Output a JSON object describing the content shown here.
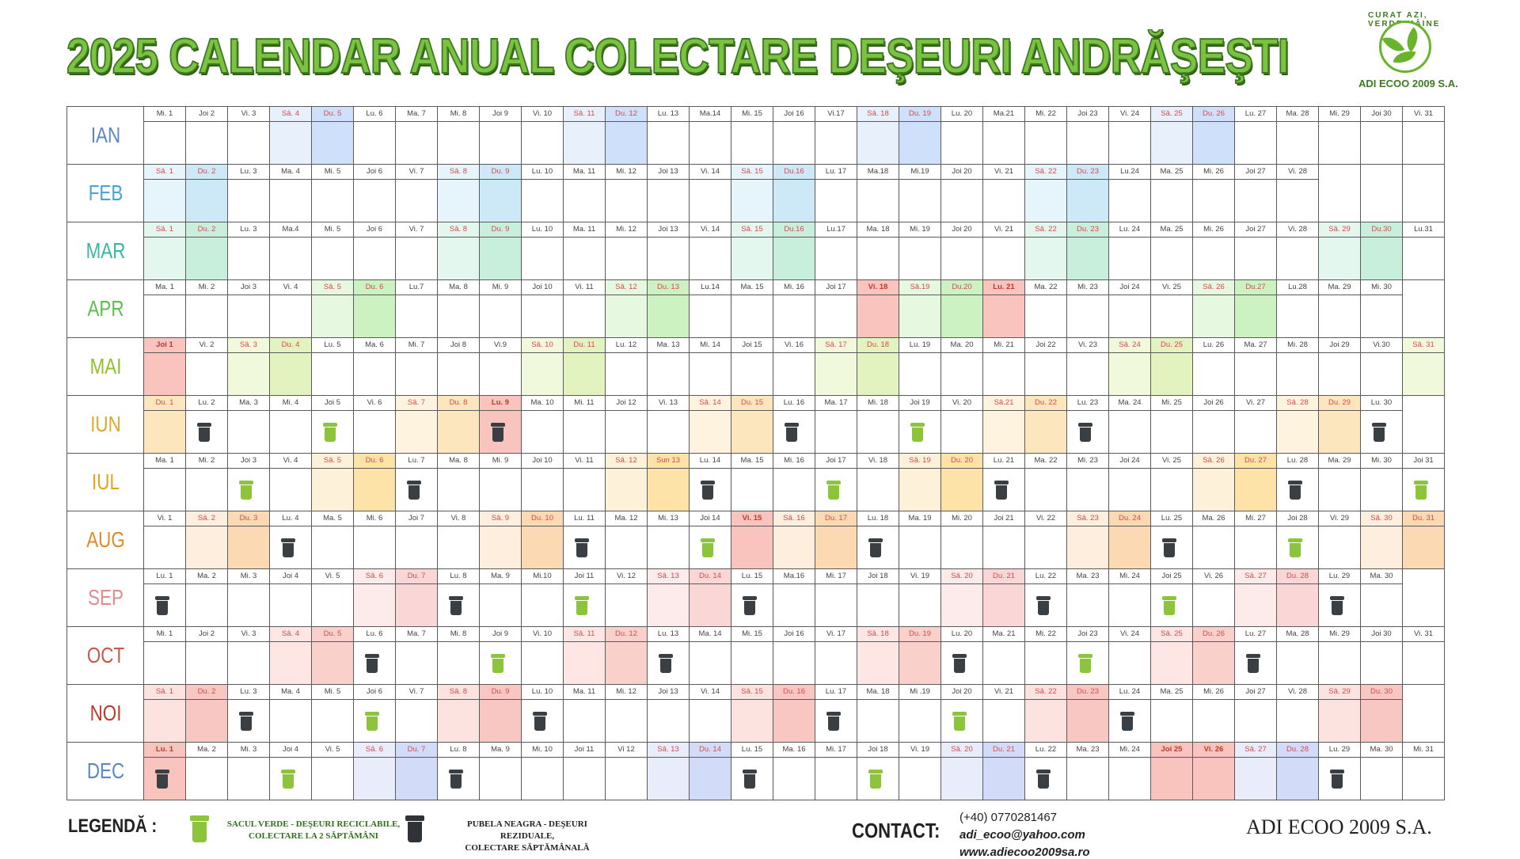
{
  "title": "2025 CALENDAR ANUAL COLECTARE DEŞEURI ANDRĂŞEŞTI",
  "logo": {
    "arc_text": "CURAT AZI, VERDE MÂINE",
    "name": "ADI ECOO 2009 S.A."
  },
  "months": [
    {
      "name": "IAN",
      "color": "#5b87c8",
      "we": "#e8f0fb",
      "su": "#cfe0fa",
      "days": [
        "Mi. 1",
        "Joi 2",
        "Vi. 3",
        "Sâ. 4",
        "Du. 5",
        "Lu. 6",
        "Ma. 7",
        "Mi. 8",
        "Joi 9",
        "Vi. 10",
        "Sâ. 11",
        "Du. 12",
        "Lu. 13",
        "Ma.14",
        "Mi. 15",
        "Joi 16",
        "Vi.17",
        "Sâ. 18",
        "Du. 19",
        "Lu. 20",
        "Ma.21",
        "Mi. 22",
        "Joi 23",
        "Vi. 24",
        "Sâ. 25",
        "Du. 26",
        "Lu. 27",
        "Ma. 28",
        "Mi. 29",
        "Joi 30",
        "Vi. 31"
      ]
    },
    {
      "name": "FEB",
      "color": "#4aa3d6",
      "we": "#e6f4fc",
      "su": "#cde9f8",
      "days": [
        "Sâ. 1",
        "Du. 2",
        "Lu. 3",
        "Ma. 4",
        "Mi. 5",
        "Joi 6",
        "Vi. 7",
        "Sâ. 8",
        "Du. 9",
        "Lu. 10",
        "Ma. 11",
        "Mi. 12",
        "Joi 13",
        "Vi. 14",
        "Sâ. 15",
        "Du.16",
        "Lu. 17",
        "Ma.18",
        "Mi.19",
        "Joi 20",
        "Vi. 21",
        "Sâ. 22",
        "Du. 23",
        "Lu.24",
        "Ma. 25",
        "Mi. 26",
        "Joi 27",
        "Vi. 28"
      ]
    },
    {
      "name": "MAR",
      "color": "#38b7a0",
      "we": "#e4f7ef",
      "su": "#c8efdc",
      "days": [
        "Sâ. 1",
        "Du. 2",
        "Lu. 3",
        "Ma.4",
        "Mi. 5",
        "Joi 6",
        "Vi. 7",
        "Sâ. 8",
        "Du. 9",
        "Lu. 10",
        "Ma. 11",
        "Mi. 12",
        "Joi 13",
        "Vi. 14",
        "Sâ. 15",
        "Du.16",
        "Lu.17",
        "Ma. 18",
        "Mi. 19",
        "Joi 20",
        "Vi. 21",
        "Sâ. 22",
        "Du. 23",
        "Lu. 24",
        "Ma. 25",
        "Mi. 26",
        "Joi 27",
        "Vi. 28",
        "Sâ. 29",
        "Du.30",
        "Lu.31"
      ]
    },
    {
      "name": "APR",
      "color": "#5cbf4a",
      "we": "#e6f8df",
      "su": "#cdf2c2",
      "days": [
        "Ma. 1",
        "Mi. 2",
        "Joi 3",
        "Vi. 4",
        "Sâ. 5",
        "Du. 6",
        "Lu.7",
        "Ma. 8",
        "Mi. 9",
        "Joi 10",
        "Vi. 11",
        "Sâ. 12",
        "Du. 13",
        "Lu.14",
        "Ma. 15",
        "Mi. 16",
        "Joi 17",
        "Vi. 18",
        "Sâ.19",
        "Du.20",
        "Lu. 21",
        "Ma. 22",
        "Mi. 23",
        "Joi 24",
        "Vi. 25",
        "Sâ. 26",
        "Du.27",
        "Lu.28",
        "Ma. 29",
        "Mi. 30"
      ]
    },
    {
      "name": "MAI",
      "color": "#8fbf2a",
      "we": "#f0f9dc",
      "su": "#e2f3bf",
      "days": [
        "Joi 1",
        "Vi. 2",
        "Sâ. 3",
        "Du. 4",
        "Lu. 5",
        "Ma. 6",
        "Mi. 7",
        "Joi 8",
        "Vi.9",
        "Sâ. 10",
        "Du. 11",
        "Lu. 12",
        "Ma. 13",
        "Mi. 14",
        "Joi 15",
        "Vi. 16",
        "Sâ. 17",
        "Du. 18",
        "Lu. 19",
        "Ma. 20",
        "Mi. 21",
        "Joi 22",
        "Vi. 23",
        "Sâ. 24",
        "Du. 25",
        "Lu. 26",
        "Ma. 27",
        "Mi. 28",
        "Joi 29",
        "Vi.30",
        "Sâ. 31"
      ]
    },
    {
      "name": "IUN",
      "color": "#e0a82a",
      "we": "#fdf3df",
      "su": "#fbe6bd",
      "days": [
        "Du. 1",
        "Lu. 2",
        "Ma. 3",
        "Mi. 4",
        "Joi 5",
        "Vi. 6",
        "Sâ. 7",
        "Du. 8",
        "Lu. 9",
        "Ma. 10",
        "Mi. 11",
        "Joi 12",
        "Vi. 13",
        "Sâ. 14",
        "Du. 15",
        "Lu. 16",
        "Ma. 17",
        "Mi. 18",
        "Joi 19",
        "Vi. 20",
        "Sâ.21",
        "Du. 22",
        "Lu. 23",
        "Ma. 24",
        "Mi. 25",
        "Joi 26",
        "Vi. 27",
        "Sâ. 28",
        "Du. 29",
        "Lu. 30"
      ]
    },
    {
      "name": "IUL",
      "color": "#e6a21f",
      "we": "#fdf2d9",
      "su": "#fde3a8",
      "days": [
        "Ma. 1",
        "Mi. 2",
        "Joi 3",
        "Vi. 4",
        "Sâ. 5",
        "Du. 6",
        "Lu. 7",
        "Ma. 8",
        "Mi. 9",
        "Joi 10",
        "Vi. 11",
        "Sâ. 12",
        "Sun 13",
        "Lu. 14",
        "Ma. 15",
        "Mi. 16",
        "Joi 17",
        "Vi. 18",
        "Sâ. 19",
        "Du. 20",
        "Lu. 21",
        "Ma. 22",
        "Mi. 23",
        "Joi 24",
        "Vi. 25",
        "Sâ. 26",
        "Du. 27",
        "Lu. 28",
        "Ma. 29",
        "Mi. 30",
        "Joi 31"
      ]
    },
    {
      "name": "AUG",
      "color": "#e08a2c",
      "we": "#fdeedd",
      "su": "#fbd9b2",
      "days": [
        "Vi. 1",
        "Sâ. 2",
        "Du. 3",
        "Lu. 4",
        "Ma. 5",
        "Mi. 6",
        "Joi 7",
        "Vi. 8",
        "Sâ. 9",
        "Du. 10",
        "Lu. 11",
        "Ma. 12",
        "Mi. 13",
        "Joi 14",
        "Vi. 15",
        "Sâ. 16",
        "Du. 17",
        "Lu. 18",
        "Ma. 19",
        "Mi. 20",
        "Joi 21",
        "Vi. 22",
        "Sâ. 23",
        "Du. 24",
        "Lu. 25",
        "Ma. 26",
        "Mi. 27",
        "Joi 28",
        "Vi. 29",
        "Sâ. 30",
        "Du. 31"
      ]
    },
    {
      "name": "SEP",
      "color": "#e08d8d",
      "we": "#fdeaea",
      "su": "#fad6d6",
      "days": [
        "Lu. 1",
        "Ma. 2",
        "Mi. 3",
        "Joi 4",
        "Vi. 5",
        "Sâ. 6",
        "Du. 7",
        "Lu. 8",
        "Ma. 9",
        "Mi.10",
        "Joi 11",
        "Vi. 12",
        "Sâ. 13",
        "Du. 14",
        "Lu. 15",
        "Ma.16",
        "Mi. 17",
        "Joi 18",
        "Vi. 19",
        "Sâ. 20",
        "Du. 21",
        "Lu. 22",
        "Ma. 23",
        "Mi. 24",
        "Joi 25",
        "Vi. 26",
        "Sâ. 27",
        "Du. 28",
        "Lu. 29",
        "Ma. 30"
      ]
    },
    {
      "name": "OCT",
      "color": "#c8584a",
      "we": "#fde6e4",
      "su": "#fad0cb",
      "days": [
        "Mi. 1",
        "Joi 2",
        "Vi. 3",
        "Sâ. 4",
        "Du. 5",
        "Lu. 6",
        "Ma. 7",
        "Mi. 8",
        "Joi 9",
        "Vi. 10",
        "Sâ. 11",
        "Du. 12",
        "Lu. 13",
        "Ma. 14",
        "Mi. 15",
        "Joi 16",
        "Vi. 17",
        "Sâ. 18",
        "Du. 19",
        "Lu. 20",
        "Ma. 21",
        "Mi. 22",
        "Joi 23",
        "Vi. 24",
        "Sâ. 25",
        "Du. 26",
        "Lu. 27",
        "Ma. 28",
        "Mi. 29",
        "Joi 30",
        "Vi. 31"
      ]
    },
    {
      "name": "NOI",
      "color": "#c0392b",
      "we": "#fde3e0",
      "su": "#f9c7c1",
      "days": [
        "Sâ. 1",
        "Du. 2",
        "Lu. 3",
        "Ma. 4",
        "Mi. 5",
        "Joi 6",
        "Vi. 7",
        "Sâ. 8",
        "Du. 9",
        "Lu. 10",
        "Ma. 11",
        "Mi. 12",
        "Joi 13",
        "Vi. 14",
        "Sâ. 15",
        "Du. 16",
        "Lu. 17",
        "Ma. 18",
        "Mi .19",
        "Joi 20",
        "Vi. 21",
        "Sâ. 22",
        "Du. 23",
        "Lu. 24",
        "Ma. 25",
        "Mi. 26",
        "Joi 27",
        "Vi. 28",
        "Sâ. 29",
        "Du. 30"
      ]
    },
    {
      "name": "DEC",
      "color": "#5b87c8",
      "we": "#e8ecfb",
      "su": "#d2dbf8",
      "days": [
        "Lu. 1",
        "Ma. 2",
        "Mi. 3",
        "Joi 4",
        "Vi. 5",
        "Sâ. 6",
        "Du. 7",
        "Lu. 8",
        "Ma. 9",
        "Mi. 10",
        "Joi 11",
        "Vi 12",
        "Sâ. 13",
        "Du. 14",
        "Lu. 15",
        "Ma. 16",
        "Mi. 17",
        "Joi 18",
        "Vi. 19",
        "Sâ. 20",
        "Du. 21",
        "Lu. 22",
        "Ma. 23",
        "Mi. 24",
        "Joi 25",
        "Vi. 26",
        "Sâ. 27",
        "Du. 28",
        "Lu. 29",
        "Ma. 30",
        "Mi. 31"
      ]
    }
  ],
  "holidays": {
    "holiday_color": "#f8c4bd",
    "days": [
      {
        "month": "APR",
        "day": 18
      },
      {
        "month": "APR",
        "day": 21
      },
      {
        "month": "MAI",
        "day": 1
      },
      {
        "month": "IUN",
        "day": 9
      },
      {
        "month": "AUG",
        "day": 15
      },
      {
        "month": "DEC",
        "day": 1
      },
      {
        "month": "DEC",
        "day": 25
      },
      {
        "month": "DEC",
        "day": 26
      }
    ]
  },
  "bins": {
    "black": [
      {
        "month": "IUN",
        "day": 2
      },
      {
        "month": "IUN",
        "day": 9
      },
      {
        "month": "IUN",
        "day": 16
      },
      {
        "month": "IUN",
        "day": 23
      },
      {
        "month": "IUN",
        "day": 30
      },
      {
        "month": "IUL",
        "day": 7
      },
      {
        "month": "IUL",
        "day": 14
      },
      {
        "month": "IUL",
        "day": 21
      },
      {
        "month": "IUL",
        "day": 28
      },
      {
        "month": "AUG",
        "day": 4
      },
      {
        "month": "AUG",
        "day": 11
      },
      {
        "month": "AUG",
        "day": 18
      },
      {
        "month": "AUG",
        "day": 25
      },
      {
        "month": "SEP",
        "day": 1
      },
      {
        "month": "SEP",
        "day": 8
      },
      {
        "month": "SEP",
        "day": 15
      },
      {
        "month": "SEP",
        "day": 22
      },
      {
        "month": "SEP",
        "day": 29
      },
      {
        "month": "OCT",
        "day": 6
      },
      {
        "month": "OCT",
        "day": 13
      },
      {
        "month": "OCT",
        "day": 20
      },
      {
        "month": "OCT",
        "day": 27
      },
      {
        "month": "NOI",
        "day": 3
      },
      {
        "month": "NOI",
        "day": 10
      },
      {
        "month": "NOI",
        "day": 17
      },
      {
        "month": "NOI",
        "day": 24
      },
      {
        "month": "DEC",
        "day": 1
      },
      {
        "month": "DEC",
        "day": 8
      },
      {
        "month": "DEC",
        "day": 15
      },
      {
        "month": "DEC",
        "day": 22
      },
      {
        "month": "DEC",
        "day": 29
      }
    ],
    "green": [
      {
        "month": "IUN",
        "day": 5
      },
      {
        "month": "IUN",
        "day": 19
      },
      {
        "month": "IUL",
        "day": 3
      },
      {
        "month": "IUL",
        "day": 17
      },
      {
        "month": "IUL",
        "day": 31
      },
      {
        "month": "AUG",
        "day": 14
      },
      {
        "month": "AUG",
        "day": 28
      },
      {
        "month": "SEP",
        "day": 11
      },
      {
        "month": "SEP",
        "day": 25
      },
      {
        "month": "OCT",
        "day": 9
      },
      {
        "month": "OCT",
        "day": 23
      },
      {
        "month": "NOI",
        "day": 6
      },
      {
        "month": "NOI",
        "day": 20
      },
      {
        "month": "DEC",
        "day": 4
      },
      {
        "month": "DEC",
        "day": 18
      }
    ]
  },
  "legend": {
    "label": "LEGENDĂ :",
    "green_text": "SACUL VERDE - DEŞEURI RECICLABILE,\nCOLECTARE LA 2 SĂPTĂMÂNI",
    "black_text": "PUBELA NEAGRA - DEŞEURI REZIDUALE,\nCOLECTARE SĂPTĂMÂNALĂ"
  },
  "contact": {
    "label": "CONTACT:",
    "phone": "(+40) 0770281467",
    "email": "adi_ecoo@yahoo.com",
    "web": "www.adiecoo2009sa.ro"
  },
  "footer_brand": "ADI ECOO 2009 S.A."
}
